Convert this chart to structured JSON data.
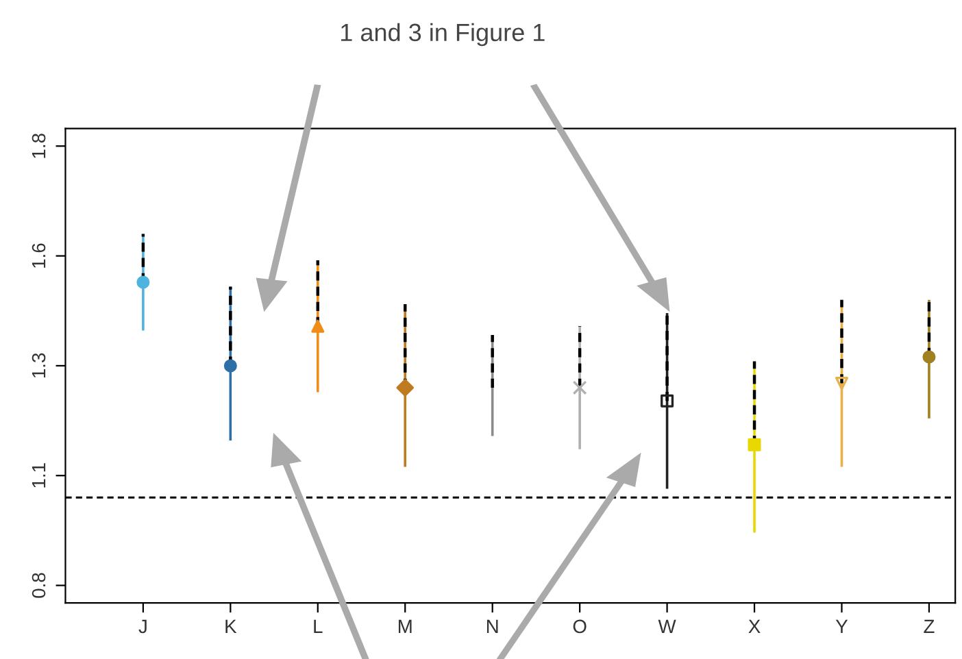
{
  "chart_data": {
    "type": "scatter",
    "categories": [
      "J",
      "K",
      "L",
      "M",
      "N",
      "O",
      "W",
      "X",
      "Y",
      "Z"
    ],
    "series": [
      {
        "x": [
          "J"
        ],
        "values": [
          1.49
        ],
        "errors": [
          [
            1.38,
            1.6
          ]
        ],
        "color": "#4fb3e0",
        "marker": "circle"
      },
      {
        "x": [
          "K"
        ],
        "values": [
          1.3
        ],
        "errors": [
          [
            1.13,
            1.48
          ]
        ],
        "color": "#2f6fa8",
        "marker": "circle"
      },
      {
        "x": [
          "L"
        ],
        "values": [
          1.39
        ],
        "errors": [
          [
            1.24,
            1.54
          ]
        ],
        "color": "#f08c1a",
        "marker": "triangle"
      },
      {
        "x": [
          "M"
        ],
        "values": [
          1.25
        ],
        "errors": [
          [
            1.07,
            1.44
          ]
        ],
        "color": "#c07a20",
        "marker": "diamond"
      },
      {
        "type": "line",
        "x": [
          "N",
          "N"
        ],
        "values": [
          1.14,
          1.37
        ],
        "color": "#8c8c8c",
        "marker": "none"
      },
      {
        "x": [
          "O"
        ],
        "values": [
          1.25
        ],
        "errors": [
          [
            1.11,
            1.39
          ]
        ],
        "color": "#b0b0b0",
        "marker": "cross"
      },
      {
        "x": [
          "W"
        ],
        "values": [
          1.22
        ],
        "errors": [
          [
            1.02,
            1.42
          ]
        ],
        "color": "#222222",
        "marker": "square"
      },
      {
        "x": [
          "X"
        ],
        "values": [
          1.12
        ],
        "errors": [
          [
            0.92,
            1.31
          ]
        ],
        "color": "#e8d800",
        "marker": "square"
      },
      {
        "x": [
          "Y"
        ],
        "values": [
          1.26
        ],
        "errors": [
          [
            1.07,
            1.45
          ]
        ],
        "color": "#e8b04a",
        "marker": "triangle_down"
      },
      {
        "x": [
          "Z"
        ],
        "values": [
          1.32
        ],
        "errors": [
          [
            1.18,
            1.45
          ]
        ],
        "color": "#a08020",
        "marker": "circle"
      },
      {
        "type": "line",
        "x": [
          "J",
          "J"
        ],
        "values": [
          1.49,
          1.6
        ],
        "color": "#000000",
        "marker": "none",
        "line_style": "dashed"
      },
      {
        "type": "line",
        "x": [
          "K",
          "K"
        ],
        "values": [
          1.3,
          1.48
        ],
        "color": "#000000",
        "marker": "none",
        "line_style": "dashed"
      },
      {
        "type": "line",
        "x": [
          "L",
          "L"
        ],
        "values": [
          1.39,
          1.54
        ],
        "color": "#000000",
        "marker": "none",
        "line_style": "dashed"
      },
      {
        "type": "line",
        "x": [
          "M",
          "M"
        ],
        "values": [
          1.25,
          1.44
        ],
        "color": "#000000",
        "marker": "none",
        "line_style": "dashed"
      },
      {
        "type": "line",
        "x": [
          "N",
          "N"
        ],
        "values": [
          1.25,
          1.37
        ],
        "color": "#000000",
        "marker": "none",
        "line_style": "dashed"
      },
      {
        "type": "line",
        "x": [
          "O",
          "O"
        ],
        "values": [
          1.25,
          1.39
        ],
        "color": "#000000",
        "marker": "none",
        "line_style": "dashed"
      },
      {
        "type": "line",
        "x": [
          "W",
          "W"
        ],
        "values": [
          1.22,
          1.42
        ],
        "color": "#000000",
        "marker": "none",
        "line_style": "dashed"
      },
      {
        "type": "line",
        "x": [
          "X",
          "X"
        ],
        "values": [
          1.12,
          1.31
        ],
        "color": "#000000",
        "marker": "none",
        "line_style": "dashed"
      },
      {
        "type": "line",
        "x": [
          "Y",
          "Y"
        ],
        "values": [
          1.26,
          1.45
        ],
        "color": "#000000",
        "marker": "none",
        "line_style": "dashed"
      },
      {
        "type": "line",
        "x": [
          "Z",
          "Z"
        ],
        "values": [
          1.32,
          1.45
        ],
        "color": "#000000",
        "marker": "none",
        "line_style": "dashed"
      }
    ],
    "ylim": [
      0.76,
      1.84
    ],
    "yticks": [
      {
        "value": 0.8,
        "label": "0.8"
      },
      {
        "value": 1.05,
        "label": "1.1"
      },
      {
        "value": 1.3,
        "label": "1.3"
      },
      {
        "value": 1.55,
        "label": "1.6"
      },
      {
        "value": 1.8,
        "label": "1.8"
      }
    ],
    "ref_lines": [
      {
        "axis": "y",
        "value": 1.0,
        "color": "#000000",
        "line_style": "dashed"
      }
    ],
    "annotations": [
      "1 and 3 in Figure 1"
    ],
    "grid": false,
    "legend": false
  }
}
